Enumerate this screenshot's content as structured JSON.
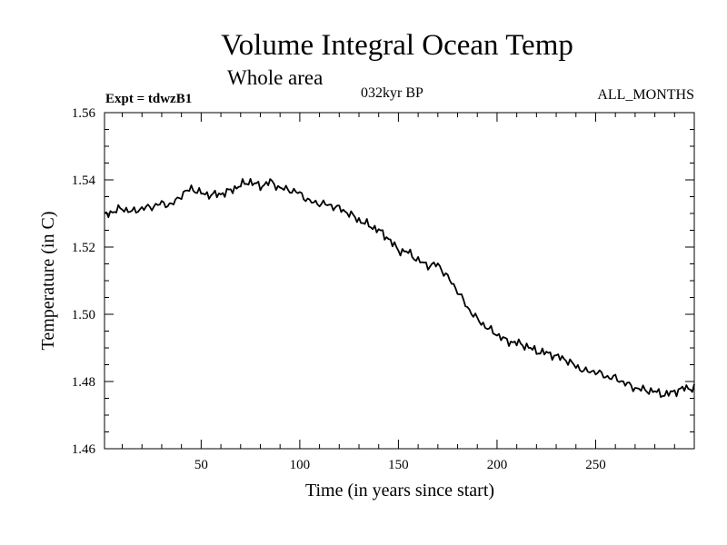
{
  "header": {
    "title": "Volume Integral Ocean Temp",
    "subtitle": "Whole area",
    "experiment": "Expt = tdwzB1",
    "period": "032kyr BP",
    "months": "ALL_MONTHS"
  },
  "chart_data": {
    "type": "line",
    "title": "Volume Integral Ocean Temp",
    "subtitle": "Whole area",
    "xlabel": "Time (in years since start)",
    "ylabel": "Temperature (in C)",
    "xlim": [
      1,
      300
    ],
    "ylim": [
      1.46,
      1.56
    ],
    "xticks": [
      50,
      100,
      150,
      200,
      250
    ],
    "yticks": [
      1.46,
      1.48,
      1.5,
      1.52,
      1.54,
      1.56
    ],
    "ytick_labels": [
      "1.46",
      "1.48",
      "1.50",
      "1.52",
      "1.54",
      "1.56"
    ],
    "grid": false,
    "series": [
      {
        "name": "Volume integral ocean temperature",
        "x": [
          1,
          5,
          10,
          15,
          20,
          25,
          30,
          35,
          40,
          45,
          50,
          55,
          60,
          65,
          70,
          75,
          80,
          85,
          90,
          95,
          100,
          105,
          110,
          115,
          120,
          125,
          130,
          135,
          140,
          145,
          150,
          155,
          160,
          165,
          170,
          175,
          180,
          185,
          190,
          195,
          200,
          205,
          210,
          215,
          220,
          225,
          230,
          235,
          240,
          245,
          250,
          255,
          260,
          265,
          270,
          275,
          280,
          285,
          290,
          295,
          300
        ],
        "values": [
          1.5295,
          1.5305,
          1.5315,
          1.5305,
          1.5315,
          1.532,
          1.533,
          1.5325,
          1.5355,
          1.5375,
          1.536,
          1.5355,
          1.5358,
          1.5368,
          1.5385,
          1.5395,
          1.538,
          1.5395,
          1.5375,
          1.537,
          1.536,
          1.5335,
          1.533,
          1.5325,
          1.5315,
          1.53,
          1.528,
          1.5265,
          1.525,
          1.5225,
          1.519,
          1.5185,
          1.516,
          1.5145,
          1.5148,
          1.511,
          1.507,
          1.502,
          1.4985,
          1.496,
          1.494,
          1.492,
          1.4915,
          1.4905,
          1.489,
          1.4885,
          1.4875,
          1.4865,
          1.4845,
          1.483,
          1.483,
          1.4815,
          1.481,
          1.4795,
          1.478,
          1.4775,
          1.477,
          1.476,
          1.477,
          1.478,
          1.478
        ]
      }
    ]
  }
}
